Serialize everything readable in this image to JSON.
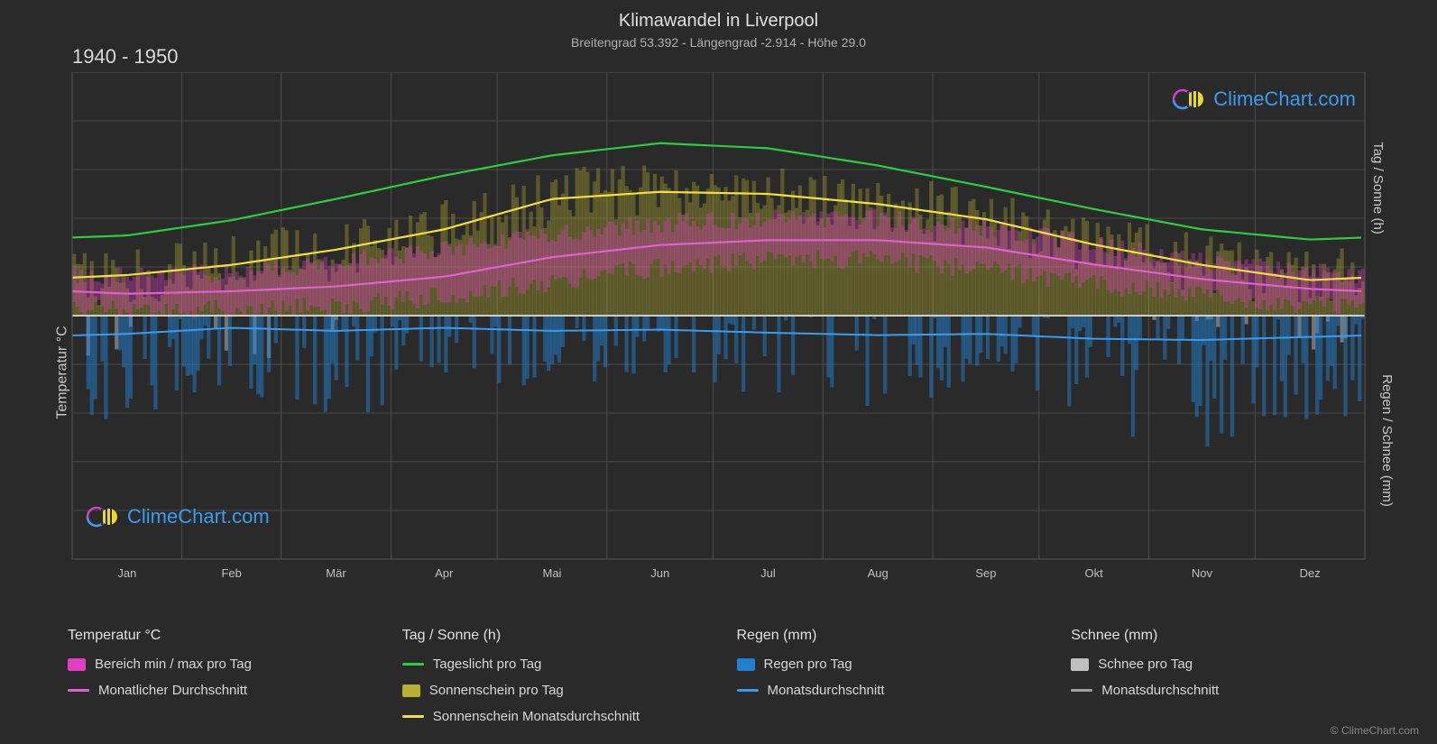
{
  "title": "Klimawandel in Liverpool",
  "subtitle": "Breitengrad 53.392 - Längengrad -2.914 - Höhe 29.0",
  "period": "1940 - 1950",
  "y_left_label": "Temperatur °C",
  "y_right_top_label": "Tag / Sonne (h)",
  "y_right_bot_label": "Regen / Schnee (mm)",
  "copyright": "© ClimeChart.com",
  "logo_text": "ClimeChart.com",
  "months": [
    "Jan",
    "Feb",
    "Mär",
    "Apr",
    "Mai",
    "Jun",
    "Jul",
    "Aug",
    "Sep",
    "Okt",
    "Nov",
    "Dez"
  ],
  "colors": {
    "bg": "#2a2a2a",
    "grid": "#555555",
    "text": "#d0d0d0",
    "daylight_line": "#2ecc40",
    "sunshine_line": "#f0e040",
    "sunshine_bars": "#b8b030",
    "temp_range": "#e040c0",
    "temp_avg_line": "#e060d0",
    "rain_bars": "#2080d0",
    "rain_line": "#3a9cf0",
    "snow_bars": "#c0c0c0",
    "snow_line": "#a0a0a0",
    "zero_line": "#e0e0e0",
    "logo_blue": "#3a9cf0",
    "logo_magenta": "#d040d0",
    "logo_yellow": "#e8d830"
  },
  "y_left": {
    "min": -50,
    "max": 50,
    "step": 10
  },
  "y_right_top": {
    "min": 0,
    "max": 24,
    "step": 6
  },
  "y_right_bot": {
    "min": 0,
    "max": 40,
    "step": 10
  },
  "daylight": [
    7.9,
    9.4,
    11.5,
    13.8,
    15.8,
    17.0,
    16.5,
    14.8,
    12.7,
    10.5,
    8.5,
    7.5
  ],
  "sunshine_avg": [
    4.0,
    5.0,
    6.5,
    8.5,
    11.5,
    12.2,
    12.0,
    11.0,
    9.5,
    7.0,
    5.0,
    3.5
  ],
  "temp_avg": [
    4.5,
    5.0,
    6.0,
    8.0,
    12.0,
    14.5,
    15.5,
    15.5,
    14.0,
    10.5,
    7.5,
    5.5
  ],
  "temp_min_base": [
    1.0,
    1.5,
    2.0,
    4.0,
    7.0,
    10.0,
    11.5,
    11.5,
    9.5,
    6.5,
    4.0,
    2.0
  ],
  "temp_max_base": [
    8.0,
    9.0,
    11.0,
    13.5,
    17.0,
    19.0,
    20.0,
    20.0,
    18.0,
    14.5,
    11.0,
    9.0
  ],
  "rain_avg": [
    3.0,
    2.0,
    2.5,
    2.0,
    2.5,
    2.3,
    2.8,
    3.2,
    3.0,
    3.8,
    4.0,
    3.5
  ],
  "rain_daily_max": [
    18,
    14,
    16,
    10,
    12,
    10,
    14,
    15,
    13,
    20,
    22,
    18
  ],
  "snow_daily_max": [
    12,
    8,
    4,
    0,
    0,
    0,
    0,
    0,
    0,
    0,
    2,
    6
  ],
  "legend": {
    "temp_header": "Temperatur °C",
    "temp_range": "Bereich min / max pro Tag",
    "temp_avg": "Monatlicher Durchschnitt",
    "sun_header": "Tag / Sonne (h)",
    "daylight": "Tageslicht pro Tag",
    "sunshine_bars": "Sonnenschein pro Tag",
    "sunshine_avg": "Sonnenschein Monatsdurchschnitt",
    "rain_header": "Regen (mm)",
    "rain_bars": "Regen pro Tag",
    "rain_avg": "Monatsdurchschnitt",
    "snow_header": "Schnee (mm)",
    "snow_bars": "Schnee pro Tag",
    "snow_avg": "Monatsdurchschnitt"
  }
}
